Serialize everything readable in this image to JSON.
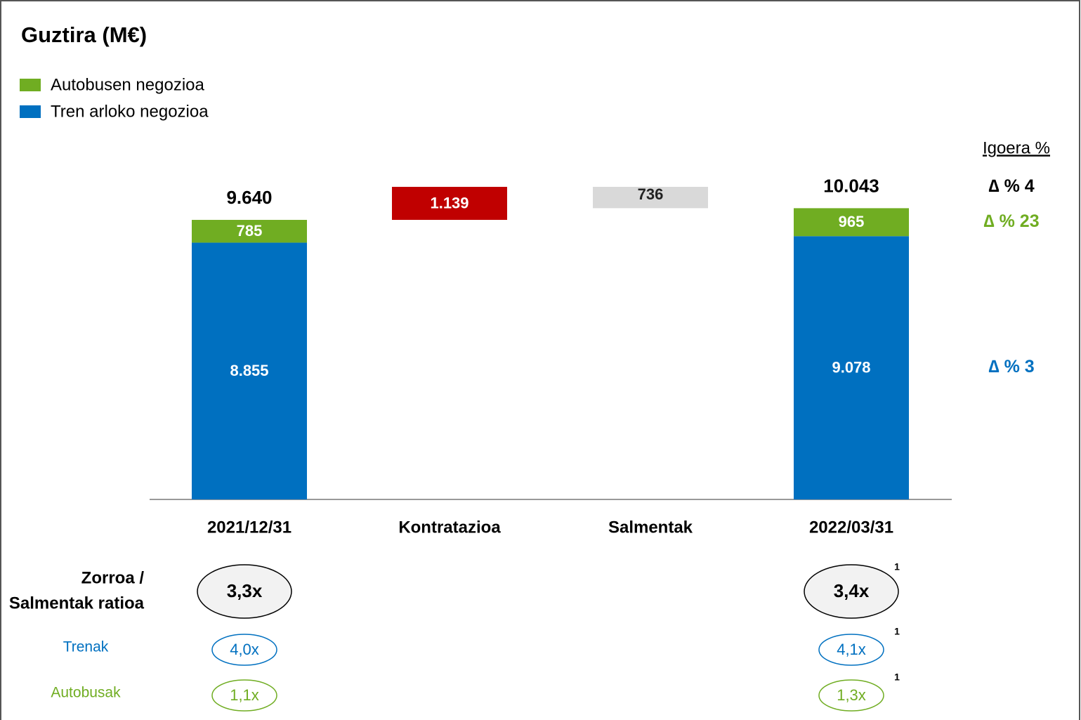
{
  "chart_data": {
    "type": "waterfall",
    "title": "Guztira (M€)",
    "categories": [
      "2021/12/31",
      "Kontratazioa",
      "Salmentak",
      "2022/03/31"
    ],
    "series": [
      {
        "name": "Autobusen negozioa",
        "color": "#70ad22",
        "values": [
          785,
          null,
          null,
          965
        ],
        "value_labels": [
          "785",
          null,
          null,
          "965"
        ]
      },
      {
        "name": "Tren arloko negozioa",
        "color": "#0070c0",
        "values": [
          8855,
          null,
          null,
          9078
        ],
        "value_labels": [
          "8.855",
          null,
          null,
          "9.078"
        ]
      }
    ],
    "totals": {
      "values": [
        9640,
        null,
        null,
        10043
      ],
      "value_labels": [
        "9.640",
        null,
        null,
        "10.043"
      ]
    },
    "changes": {
      "values": [
        null,
        1139,
        736,
        null
      ],
      "value_labels": [
        null,
        "1.139",
        "736",
        null
      ],
      "direction": [
        null,
        "increase",
        "decrease",
        null
      ],
      "colors": [
        null,
        "#c00000",
        "#d9d9d9",
        null
      ]
    },
    "growth": {
      "title": "Igoera %",
      "labels": [
        "∆ % 4",
        "∆ % 23",
        "∆ % 3"
      ]
    },
    "ratios": {
      "rows": [
        {
          "label": [
            "Zorroa /",
            "Salmentak ratioa"
          ],
          "values": [
            "3,3x",
            null,
            null,
            "3,4x"
          ]
        },
        {
          "label": [
            "Trenak"
          ],
          "values": [
            "4,0x",
            null,
            null,
            "4,1x"
          ]
        },
        {
          "label": [
            "Autobusak"
          ],
          "values": [
            "1,1x",
            null,
            null,
            "1,3x"
          ]
        }
      ],
      "footnote": "1"
    }
  }
}
